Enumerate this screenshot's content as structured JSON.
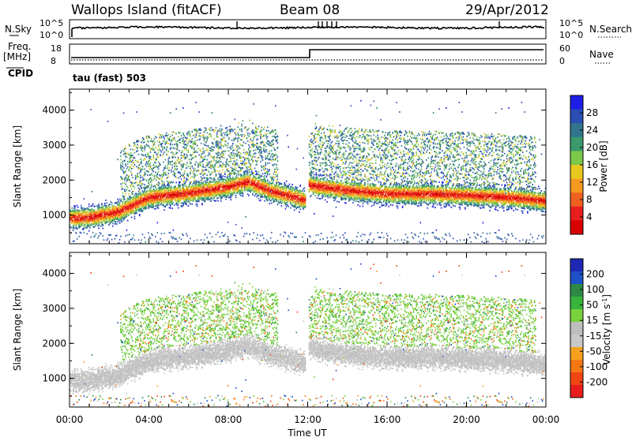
{
  "header": {
    "station": "Wallops Island (fitACF)",
    "beam": "Beam 08",
    "date": "29/Apr/2012"
  },
  "status_panels": {
    "nsky_label": "N.Sky",
    "nsky_ticks": [
      "10^5",
      "10^0"
    ],
    "nsearch_label": "N.Search",
    "nsearch_ticks": [
      "10^5",
      "10^0"
    ],
    "freq_label": "Freq.",
    "freq_unit": "[MHz]",
    "freq_ticks": [
      "18",
      "8"
    ],
    "nave_label": "Nave",
    "nave_ticks": [
      "60",
      "0"
    ],
    "cpid_label": "CPID",
    "cpid_value": "tau (fast) 503"
  },
  "chart_data": [
    {
      "type": "heatmap",
      "name": "power-panel",
      "xlabel": "",
      "ylabel": "Slant Range [km]",
      "xlim_hours": [
        0,
        24
      ],
      "ylim_km": [
        180,
        4600
      ],
      "y_ticks": [
        1000,
        2000,
        3000,
        4000
      ],
      "y_tick_labels": [
        "1000",
        "2000",
        "3000",
        "4000"
      ],
      "colorbar": {
        "label": "Power [dB]",
        "ticks": [
          "4",
          "8",
          "12",
          "16",
          "20",
          "24",
          "28"
        ],
        "colors": [
          "#1e1ee6",
          "#2a4fb4",
          "#31768c",
          "#3a9a6c",
          "#7cc84a",
          "#e8c81e",
          "#f59a1e",
          "#f0601e",
          "#e81e1e",
          "#d80000"
        ]
      },
      "features": {
        "main_band_center_km": [
          [
            0,
            900
          ],
          [
            1.0,
            920
          ],
          [
            2.5,
            1100
          ],
          [
            4,
            1500
          ],
          [
            6,
            1620
          ],
          [
            8,
            1800
          ],
          [
            9,
            1950
          ],
          [
            10,
            1700
          ],
          [
            12,
            1400
          ],
          [
            12.05,
            1850
          ],
          [
            14,
            1700
          ],
          [
            16,
            1600
          ],
          [
            18,
            1600
          ],
          [
            20,
            1560
          ],
          [
            22,
            1500
          ],
          [
            24,
            1400
          ]
        ],
        "data_gap_hours": [
          11.9,
          12.05
        ]
      }
    },
    {
      "type": "heatmap",
      "name": "velocity-panel",
      "xlabel": "Time UT",
      "ylabel": "Slant Range [km]",
      "x_ticks": [
        "00:00",
        "04:00",
        "08:00",
        "12:00",
        "16:00",
        "20:00",
        "00:00"
      ],
      "xlim_hours": [
        0,
        24
      ],
      "ylim_km": [
        180,
        4600
      ],
      "y_ticks": [
        1000,
        2000,
        3000,
        4000
      ],
      "y_tick_labels": [
        "1000",
        "2000",
        "3000",
        "4000"
      ],
      "colorbar": {
        "label": "Velocity [m s^-1]",
        "ticks": [
          "200",
          "100",
          "50",
          "15",
          "-15",
          "-50",
          "-100",
          "-200"
        ],
        "colors": [
          "#1e28b4",
          "#1e50c8",
          "#2d8a46",
          "#37b43c",
          "#78d23c",
          "#bebebe",
          "#c8c8c8",
          "#f5a01e",
          "#f57814",
          "#f04614",
          "#e81e1e"
        ]
      }
    }
  ]
}
